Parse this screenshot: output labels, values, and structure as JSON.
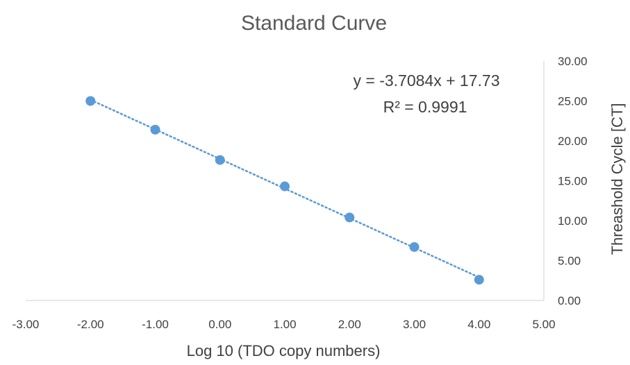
{
  "chart_data": {
    "type": "scatter",
    "title": "Standard Curve",
    "xlabel": "Log 10 (TDO copy numbers)",
    "ylabel": "Threashold Cycle [CT]",
    "xlim": [
      -3,
      5
    ],
    "ylim": [
      0,
      30
    ],
    "x_ticks": [
      "-3.00",
      "-2.00",
      "-1.00",
      "0.00",
      "1.00",
      "2.00",
      "3.00",
      "4.00",
      "5.00"
    ],
    "y_ticks": [
      "0.00",
      "5.00",
      "10.00",
      "15.00",
      "20.00",
      "25.00",
      "30.00"
    ],
    "y_axis_side": "right",
    "grid": false,
    "legend": "none",
    "series": [
      {
        "x": [
          -2,
          -1,
          0,
          1,
          2,
          3,
          4
        ],
        "y": [
          25.0,
          21.4,
          17.6,
          14.3,
          10.4,
          6.7,
          2.6
        ],
        "color": "#5b9bd5"
      }
    ],
    "trendline": {
      "type": "linear",
      "slope": -3.7084,
      "intercept": 17.73,
      "style": "dotted",
      "color": "#5b9bd5",
      "equation": "y = -3.7084x + 17.73",
      "r_squared": "R² = 0.9991"
    }
  }
}
